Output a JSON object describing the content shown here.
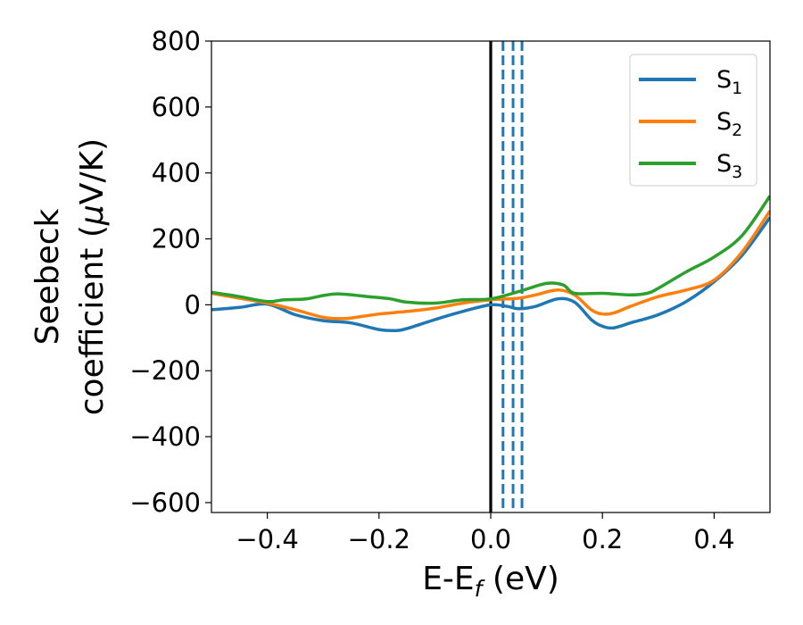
{
  "chart_data": {
    "type": "line",
    "title": "",
    "xlabel": {
      "main": "E-E",
      "sub": "f",
      "tail": " (eV)"
    },
    "ylabel": {
      "line1": "Seebeck",
      "line2_a": "coefficient  (",
      "line2_mu": "μ",
      "line2_b": "V/K)"
    },
    "xlim": [
      -0.5,
      0.5
    ],
    "ylim": [
      -630,
      800
    ],
    "xticks": [
      -0.4,
      -0.2,
      0.0,
      0.2,
      0.4
    ],
    "xtick_labels": [
      "−0.4",
      "−0.2",
      "0.0",
      "0.2",
      "0.4"
    ],
    "yticks": [
      -600,
      -400,
      -200,
      0,
      200,
      400,
      600,
      800
    ],
    "ytick_labels": [
      "−600",
      "−400",
      "−200",
      "0",
      "200",
      "400",
      "600",
      "800"
    ],
    "grid": false,
    "legend_position": "top-right",
    "vertical_lines": [
      {
        "x": 0.0,
        "style": "solid",
        "color": "#000000"
      },
      {
        "x": 0.022,
        "style": "dashed",
        "color": "#1f77b4"
      },
      {
        "x": 0.04,
        "style": "dashed",
        "color": "#1f77b4"
      },
      {
        "x": 0.056,
        "style": "dashed",
        "color": "#1f77b4"
      }
    ],
    "series": [
      {
        "name": "S",
        "sub": "1",
        "color": "#1f77b4",
        "x": [
          -0.5,
          -0.45,
          -0.4,
          -0.35,
          -0.3,
          -0.25,
          -0.2,
          -0.17,
          -0.15,
          -0.1,
          -0.05,
          0.0,
          0.03,
          0.05,
          0.08,
          0.12,
          0.15,
          0.18,
          0.2,
          0.22,
          0.25,
          0.3,
          0.35,
          0.4,
          0.45,
          0.5
        ],
        "y": [
          -15,
          -8,
          2,
          -30,
          -48,
          -55,
          -75,
          -78,
          -72,
          -45,
          -20,
          0,
          -5,
          -12,
          -5,
          18,
          8,
          -45,
          -65,
          -70,
          -55,
          -30,
          10,
          70,
          150,
          265
        ]
      },
      {
        "name": "S",
        "sub": "2",
        "color": "#ff7f0e",
        "x": [
          -0.5,
          -0.45,
          -0.4,
          -0.35,
          -0.3,
          -0.27,
          -0.25,
          -0.2,
          -0.15,
          -0.1,
          -0.05,
          0.0,
          0.05,
          0.08,
          0.12,
          0.15,
          0.18,
          0.2,
          0.22,
          0.25,
          0.3,
          0.35,
          0.4,
          0.45,
          0.5
        ],
        "y": [
          35,
          20,
          5,
          -15,
          -38,
          -42,
          -40,
          -28,
          -20,
          -10,
          5,
          15,
          20,
          30,
          45,
          30,
          -15,
          -28,
          -25,
          -5,
          25,
          45,
          75,
          160,
          285
        ]
      },
      {
        "name": "S",
        "sub": "3",
        "color": "#2ca02c",
        "x": [
          -0.5,
          -0.45,
          -0.4,
          -0.37,
          -0.33,
          -0.3,
          -0.27,
          -0.22,
          -0.18,
          -0.15,
          -0.1,
          -0.05,
          0.0,
          0.05,
          0.1,
          0.13,
          0.15,
          0.2,
          0.25,
          0.28,
          0.3,
          0.35,
          0.4,
          0.45,
          0.5
        ],
        "y": [
          38,
          25,
          10,
          15,
          18,
          28,
          33,
          25,
          18,
          8,
          5,
          15,
          18,
          40,
          65,
          60,
          35,
          35,
          30,
          35,
          50,
          100,
          145,
          210,
          330
        ]
      }
    ]
  }
}
